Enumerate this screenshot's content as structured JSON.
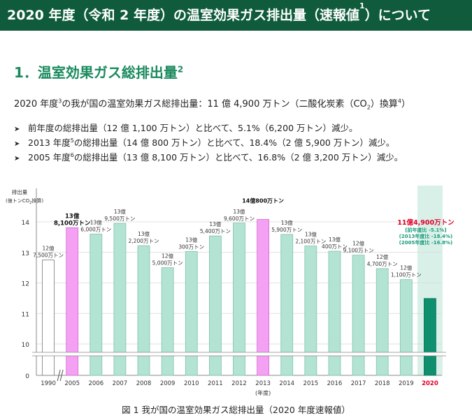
{
  "header": {
    "title_pre": "2020 年度（令和 2 年度）の温室効果ガス排出量（速報値",
    "title_sup": "1",
    "title_post": "）について"
  },
  "section": {
    "title": "1．温室効果ガス総排出量",
    "sup": "2"
  },
  "lead": {
    "part1": "2020 年度",
    "sup1": "3",
    "part2": "の我が国の温室効果ガス総排出量：11 億 4,900 万トン（二酸化炭素（CO",
    "sub": "2",
    "part3": "）換算",
    "sup2": "4",
    "part4": "）"
  },
  "bullets": [
    {
      "pre": "前年度の総排出量（12 億 1,100 万トン）と比べて、5.1%（6,200 万トン）減少。",
      "sup": "",
      "post": ""
    },
    {
      "pre": "2013 年度",
      "sup": "5",
      "post": "の総排出量（14 億 800 万トン）と比べて、18.4%（2 億 5,900 万トン）減少。"
    },
    {
      "pre": "2005 年度",
      "sup": "6",
      "post": "の総排出量（13 億 8,100 万トン）と比べて、16.8%（2 億 3,200 万トン）減少。"
    }
  ],
  "caption": "図 1  我が国の温室効果ガス総排出量（2020 年度速報値）",
  "colors": {
    "banner": "#0f5b3c",
    "section": "#1a8a5e",
    "bar_default": "#b3e3d2",
    "bar_highlight": "#f4a1f4",
    "bar_1990": "#ffffff",
    "bar_2020": "#0e8f6e",
    "band_2020": "#d9f0e8",
    "label_2020_main": "#e0002a",
    "label_2020_sub": "#1b9b7c",
    "year_2020": "#e0002a"
  },
  "chart_data": {
    "type": "bar",
    "ylabel_line1": "排出量",
    "ylabel_line2": "(億トンCO",
    "ylabel_sub": "2",
    "ylabel_line3": "換算)",
    "xlabel": "(年度)",
    "y_ticks": [
      "14",
      "13",
      "12",
      "11",
      "10",
      "0"
    ],
    "ylim": [
      10,
      14.5
    ],
    "axis_break": true,
    "categories": [
      "1990",
      "2005",
      "2006",
      "2007",
      "2008",
      "2009",
      "2010",
      "2011",
      "2012",
      "2013",
      "2014",
      "2015",
      "2016",
      "2017",
      "2018",
      "2019",
      "2020"
    ],
    "values": [
      12.75,
      13.81,
      13.6,
      13.95,
      13.22,
      12.5,
      13.03,
      13.54,
      13.96,
      14.08,
      13.59,
      13.21,
      13.04,
      12.91,
      12.47,
      12.11,
      11.49
    ],
    "styles": [
      "outline",
      "highlight",
      "default",
      "default",
      "default",
      "default",
      "default",
      "default",
      "default",
      "highlight",
      "default",
      "default",
      "default",
      "default",
      "default",
      "default",
      "current"
    ],
    "labels": [
      [
        "12億",
        "7,500万トン"
      ],
      [
        "13億",
        "8,100万トン"
      ],
      [
        "13億",
        "6,000万トン"
      ],
      [
        "13億",
        "9,500万トン"
      ],
      [
        "13億",
        "2,200万トン"
      ],
      [
        "12億",
        "5,000万トン"
      ],
      [
        "13億",
        "300万トン"
      ],
      [
        "13億",
        "5,400万トン"
      ],
      [
        "13億",
        "9,600万トン"
      ],
      [
        "14億800万トン"
      ],
      [
        "13億",
        "5,900万トン"
      ],
      [
        "13億",
        "2,100万トン"
      ],
      [
        "13億",
        "400万トン"
      ],
      [
        "12億",
        "9,100万トン"
      ],
      [
        "12億",
        "4,700万トン"
      ],
      [
        "12億",
        "1,100万トン"
      ],
      [
        "11億4,900万トン",
        "[前年度比 -5.1%]",
        "(2013年度比 -18.4%)",
        "(2005年度比 -16.8%)"
      ]
    ]
  }
}
